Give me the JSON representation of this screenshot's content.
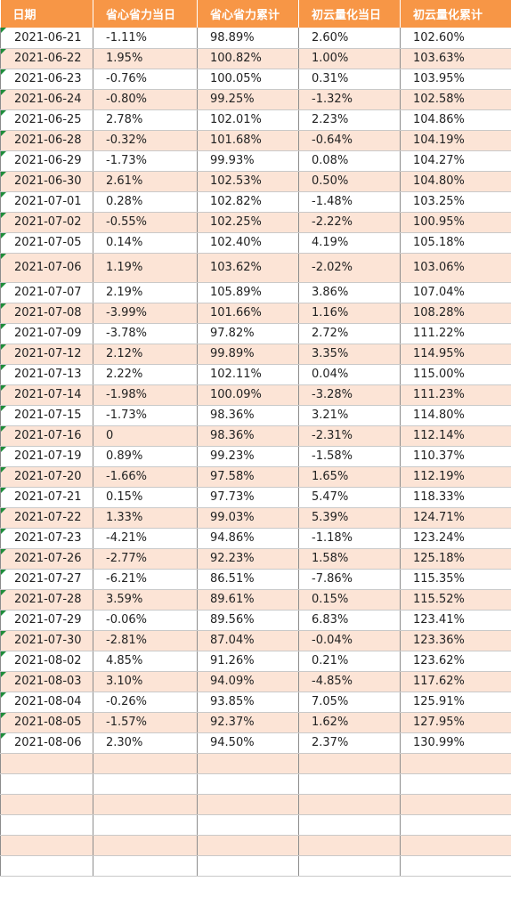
{
  "headers": [
    "日期",
    "省心省力当日",
    "省心省力累计",
    "初云量化当日",
    "初云量化累计"
  ],
  "rows": [
    [
      "2021-06-21",
      "-1.11%",
      "98.89%",
      "2.60%",
      "102.60%"
    ],
    [
      "2021-06-22",
      "1.95%",
      "100.82%",
      "1.00%",
      "103.63%"
    ],
    [
      "2021-06-23",
      "-0.76%",
      "100.05%",
      "0.31%",
      "103.95%"
    ],
    [
      "2021-06-24",
      "-0.80%",
      "99.25%",
      "-1.32%",
      "102.58%"
    ],
    [
      "2021-06-25",
      "2.78%",
      "102.01%",
      "2.23%",
      "104.86%"
    ],
    [
      "2021-06-28",
      "-0.32%",
      "101.68%",
      "-0.64%",
      "104.19%"
    ],
    [
      "2021-06-29",
      "-1.73%",
      "99.93%",
      "0.08%",
      "104.27%"
    ],
    [
      "2021-06-30",
      "2.61%",
      "102.53%",
      "0.50%",
      "104.80%"
    ],
    [
      "2021-07-01",
      "0.28%",
      "102.82%",
      "-1.48%",
      "103.25%"
    ],
    [
      "2021-07-02",
      "-0.55%",
      "102.25%",
      "-2.22%",
      "100.95%"
    ],
    [
      "2021-07-05",
      "0.14%",
      "102.40%",
      "4.19%",
      "105.18%"
    ],
    [
      "2021-07-06",
      "1.19%",
      "103.62%",
      "-2.02%",
      "103.06%"
    ],
    [
      "2021-07-07",
      "2.19%",
      "105.89%",
      "3.86%",
      "107.04%"
    ],
    [
      "2021-07-08",
      "-3.99%",
      "101.66%",
      "1.16%",
      "108.28%"
    ],
    [
      "2021-07-09",
      "-3.78%",
      "97.82%",
      "2.72%",
      "111.22%"
    ],
    [
      "2021-07-12",
      "2.12%",
      "99.89%",
      "3.35%",
      "114.95%"
    ],
    [
      "2021-07-13",
      "2.22%",
      "102.11%",
      "0.04%",
      "115.00%"
    ],
    [
      "2021-07-14",
      "-1.98%",
      "100.09%",
      "-3.28%",
      "111.23%"
    ],
    [
      "2021-07-15",
      "-1.73%",
      "98.36%",
      "3.21%",
      "114.80%"
    ],
    [
      "2021-07-16",
      "0",
      "98.36%",
      "-2.31%",
      "112.14%"
    ],
    [
      "2021-07-19",
      "0.89%",
      "99.23%",
      "-1.58%",
      "110.37%"
    ],
    [
      "2021-07-20",
      "-1.66%",
      "97.58%",
      "1.65%",
      "112.19%"
    ],
    [
      "2021-07-21",
      "0.15%",
      "97.73%",
      "5.47%",
      "118.33%"
    ],
    [
      "2021-07-22",
      "1.33%",
      "99.03%",
      "5.39%",
      "124.71%"
    ],
    [
      "2021-07-23",
      "-4.21%",
      "94.86%",
      "-1.18%",
      "123.24%"
    ],
    [
      "2021-07-26",
      "-2.77%",
      "92.23%",
      "1.58%",
      "125.18%"
    ],
    [
      "2021-07-27",
      "-6.21%",
      "86.51%",
      "-7.86%",
      "115.35%"
    ],
    [
      "2021-07-28",
      "3.59%",
      "89.61%",
      "0.15%",
      "115.52%"
    ],
    [
      "2021-07-29",
      "-0.06%",
      "89.56%",
      "6.83%",
      "123.41%"
    ],
    [
      "2021-07-30",
      "-2.81%",
      "87.04%",
      "-0.04%",
      "123.36%"
    ],
    [
      "2021-08-02",
      "4.85%",
      "91.26%",
      "0.21%",
      "123.62%"
    ],
    [
      "2021-08-03",
      "3.10%",
      "94.09%",
      "-4.85%",
      "117.62%"
    ],
    [
      "2021-08-04",
      "-0.26%",
      "93.85%",
      "7.05%",
      "125.91%"
    ],
    [
      "2021-08-05",
      "-1.57%",
      "92.37%",
      "1.62%",
      "127.95%"
    ],
    [
      "2021-08-06",
      "2.30%",
      "94.50%",
      "2.37%",
      "130.99%"
    ]
  ],
  "empty_rows": 6,
  "colors": {
    "header_bg": "#f79646",
    "header_text": "#ffffff",
    "band_row": "#fce4d6",
    "plain_row": "#ffffff",
    "error_marker": "#1e8c3a"
  }
}
